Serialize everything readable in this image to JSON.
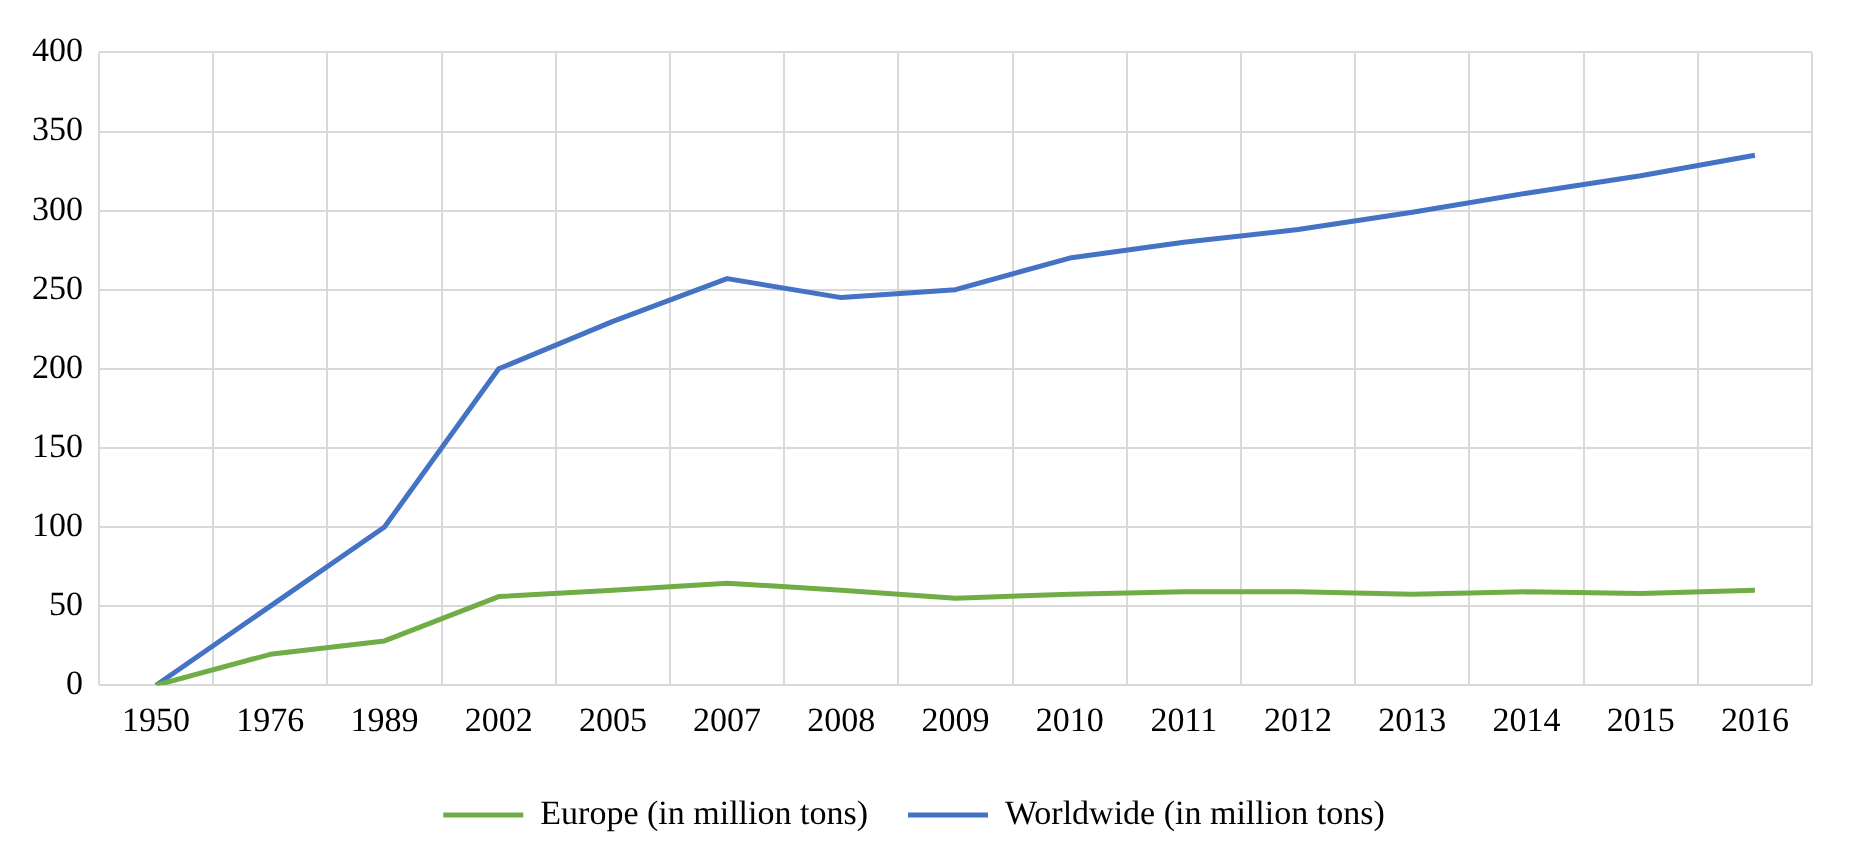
{
  "chart_data": {
    "type": "line",
    "categories": [
      "1950",
      "1976",
      "1989",
      "2002",
      "2005",
      "2007",
      "2008",
      "2009",
      "2010",
      "2011",
      "2012",
      "2013",
      "2014",
      "2015",
      "2016"
    ],
    "series": [
      {
        "name": "Europe (in million tons)",
        "color": "#70ad47",
        "values": [
          0,
          19.5,
          28,
          56,
          60,
          64.5,
          60,
          55,
          57.5,
          59,
          59,
          57.5,
          59,
          58,
          60
        ]
      },
      {
        "name": "Worldwide (in million tons)",
        "color": "#4472c4",
        "values": [
          0,
          50,
          100,
          200,
          230,
          257,
          245,
          250,
          270,
          280,
          288,
          299,
          311,
          322,
          335
        ]
      }
    ],
    "ylim": [
      0,
      400
    ],
    "yticks": [
      0,
      50,
      100,
      150,
      200,
      250,
      300,
      350,
      400
    ],
    "grid": true,
    "legend": "bottom",
    "marker": "none",
    "line_style": "solid"
  }
}
